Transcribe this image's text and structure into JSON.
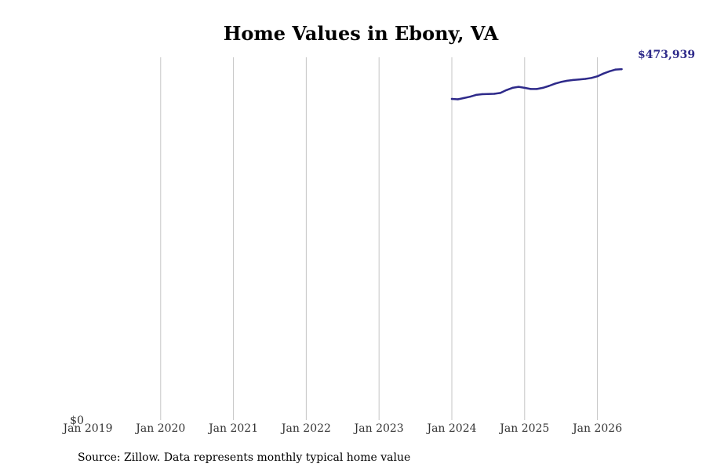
{
  "chart_data": {
    "type": "line",
    "title": "Home Values in Ebony, VA",
    "source": "Source: Zillow. Data represents monthly typical home value",
    "xlabel": "",
    "ylabel": "",
    "x_ticks": [
      {
        "label": "Jan 2019",
        "date": "2019-01"
      },
      {
        "label": "Jan 2020",
        "date": "2020-01"
      },
      {
        "label": "Jan 2021",
        "date": "2021-01"
      },
      {
        "label": "Jan 2022",
        "date": "2022-01"
      },
      {
        "label": "Jan 2023",
        "date": "2023-01"
      },
      {
        "label": "Jan 2024",
        "date": "2024-01"
      },
      {
        "label": "Jan 2025",
        "date": "2025-01"
      },
      {
        "label": "Jan 2026",
        "date": "2026-01"
      }
    ],
    "y_ticks": [
      {
        "label": "$0",
        "value": 0
      }
    ],
    "xlim": [
      "2019-01",
      "2026-06"
    ],
    "ylim": [
      0,
      490000
    ],
    "grid": "vertical",
    "line_color": "#2e2a8a",
    "end_label": "$473,939",
    "series": [
      {
        "points": [
          {
            "date": "2024-01",
            "value": 433800
          },
          {
            "date": "2024-02",
            "value": 433300
          },
          {
            "date": "2024-03",
            "value": 435000
          },
          {
            "date": "2024-04",
            "value": 436800
          },
          {
            "date": "2024-05",
            "value": 439200
          },
          {
            "date": "2024-06",
            "value": 440200
          },
          {
            "date": "2024-07",
            "value": 440400
          },
          {
            "date": "2024-08",
            "value": 440700
          },
          {
            "date": "2024-09",
            "value": 441800
          },
          {
            "date": "2024-10",
            "value": 445700
          },
          {
            "date": "2024-11",
            "value": 448700
          },
          {
            "date": "2024-12",
            "value": 450100
          },
          {
            "date": "2025-01",
            "value": 448700
          },
          {
            "date": "2025-02",
            "value": 447200
          },
          {
            "date": "2025-03",
            "value": 447200
          },
          {
            "date": "2025-04",
            "value": 448700
          },
          {
            "date": "2025-05",
            "value": 451300
          },
          {
            "date": "2025-06",
            "value": 454400
          },
          {
            "date": "2025-07",
            "value": 456700
          },
          {
            "date": "2025-08",
            "value": 458300
          },
          {
            "date": "2025-09",
            "value": 459300
          },
          {
            "date": "2025-10",
            "value": 460100
          },
          {
            "date": "2025-11",
            "value": 460800
          },
          {
            "date": "2025-12",
            "value": 462100
          },
          {
            "date": "2026-01",
            "value": 464300
          },
          {
            "date": "2026-02",
            "value": 468000
          },
          {
            "date": "2026-03",
            "value": 471100
          },
          {
            "date": "2026-04",
            "value": 473500
          },
          {
            "date": "2026-05",
            "value": 473939
          }
        ]
      }
    ]
  }
}
